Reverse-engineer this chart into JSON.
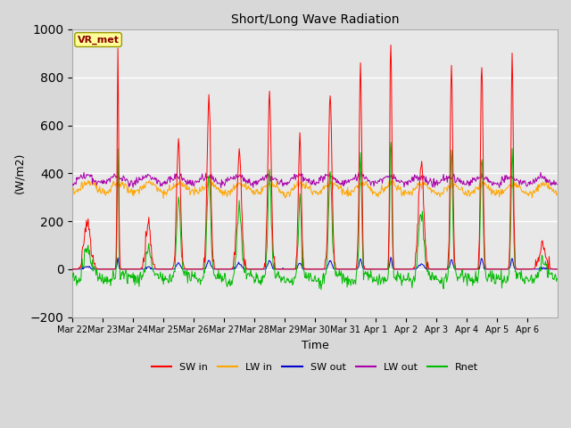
{
  "title": "Short/Long Wave Radiation",
  "xlabel": "Time",
  "ylabel": "(W/m2)",
  "ylim": [
    -200,
    1000
  ],
  "yticks": [
    -200,
    0,
    200,
    400,
    600,
    800,
    1000
  ],
  "annotation": "VR_met",
  "fig_bg_color": "#d8d8d8",
  "plot_bg_color": "#e8e8e8",
  "colors": {
    "SW_in": "#ff0000",
    "LW_in": "#ffa500",
    "SW_out": "#0000cc",
    "LW_out": "#aa00aa",
    "Rnet": "#00bb00"
  },
  "sw_in_amps": [
    200,
    900,
    200,
    530,
    720,
    480,
    730,
    550,
    720,
    860,
    960,
    450,
    860,
    860,
    880,
    100
  ],
  "sw_in_widths": [
    2.5,
    0.6,
    2.0,
    1.5,
    1.4,
    1.8,
    1.4,
    1.2,
    1.4,
    1.0,
    0.8,
    2.0,
    1.0,
    1.0,
    0.9,
    2.5
  ],
  "n_days": 16,
  "dt": 0.02,
  "xtick_labels": [
    "Mar 22",
    "Mar 23",
    "Mar 24",
    "Mar 25",
    "Mar 26",
    "Mar 27",
    "Mar 28",
    "Mar 29",
    "Mar 30",
    "Mar 31",
    "Apr 1",
    "Apr 2",
    "Apr 3",
    "Apr 4",
    "Apr 5",
    "Apr 6"
  ],
  "figsize": [
    6.4,
    4.8
  ],
  "dpi": 100
}
